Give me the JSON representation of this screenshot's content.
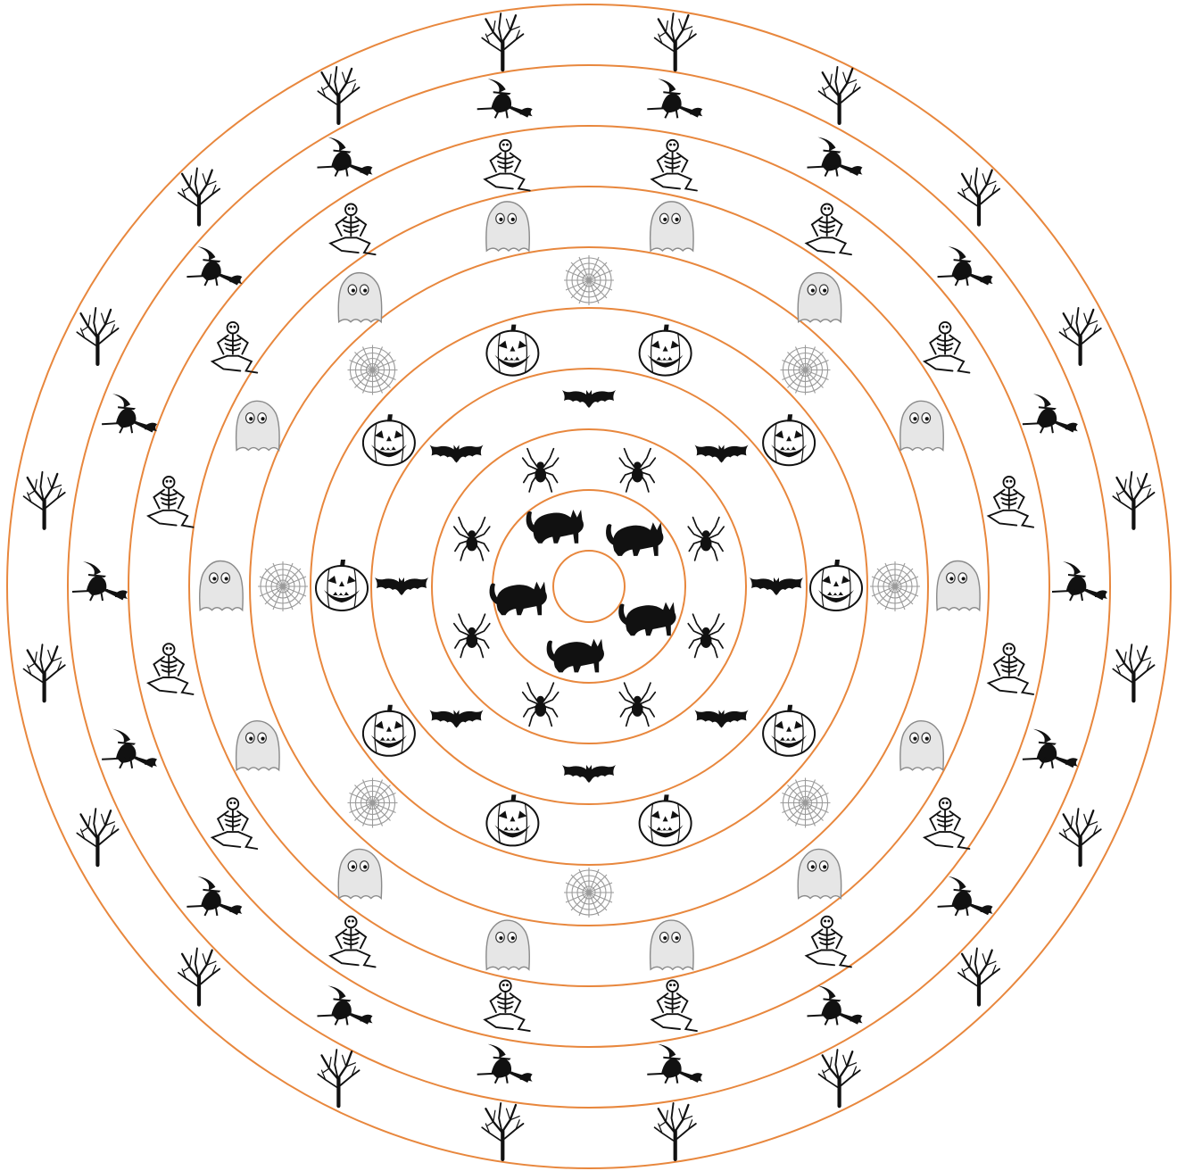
{
  "colors": {
    "ring": "#e8873d",
    "ink": "#111111",
    "ghost_fill": "#e6e6e6",
    "ghost_stroke": "#8a8a8a",
    "web": "#9a9a9a",
    "background": "#ffffff"
  },
  "rings": [
    {
      "name": "ring-1",
      "symbol": "cat-icon",
      "count": 5,
      "phase_deg": -45
    },
    {
      "name": "ring-2",
      "symbol": "spider-icon",
      "count": 8,
      "phase_deg": -112.5
    },
    {
      "name": "ring-3",
      "symbol": "bat-icon",
      "count": 8,
      "phase_deg": -90
    },
    {
      "name": "ring-4",
      "symbol": "pumpkin-icon",
      "count": 10,
      "phase_deg": -108
    },
    {
      "name": "ring-5",
      "symbol": "web-icon",
      "count": 8,
      "phase_deg": -90
    },
    {
      "name": "ring-6",
      "symbol": "ghost-icon",
      "count": 14,
      "phase_deg": -102.86
    },
    {
      "name": "ring-7",
      "symbol": "skeleton-icon",
      "count": 16,
      "phase_deg": -101.25
    },
    {
      "name": "ring-8",
      "symbol": "witch-icon",
      "count": 18,
      "phase_deg": -100
    },
    {
      "name": "ring-9",
      "symbol": "tree-icon",
      "count": 20,
      "phase_deg": -99
    }
  ]
}
